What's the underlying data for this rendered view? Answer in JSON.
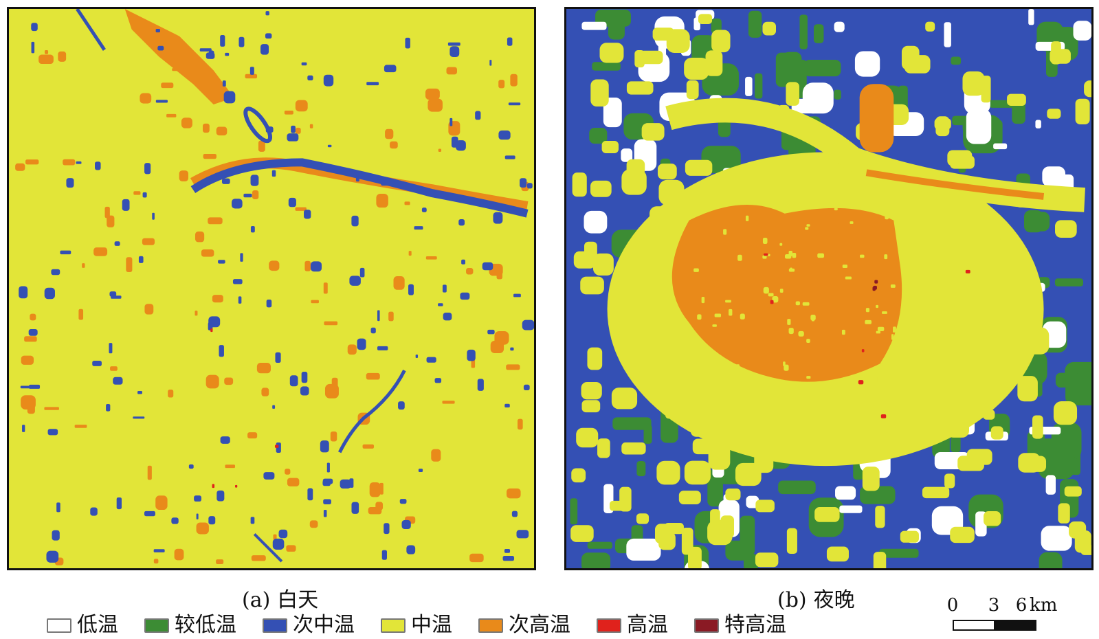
{
  "panels": {
    "a": {
      "label": "(a)",
      "title": "白天"
    },
    "b": {
      "label": "(b)",
      "title": "夜晚"
    }
  },
  "legend": [
    {
      "label": "低温",
      "color": "#ffffff"
    },
    {
      "label": "较低温",
      "color": "#3c8c34"
    },
    {
      "label": "次中温",
      "color": "#3450b4"
    },
    {
      "label": "中温",
      "color": "#e2e538"
    },
    {
      "label": "次高温",
      "color": "#e98a1a"
    },
    {
      "label": "高温",
      "color": "#e0221c"
    },
    {
      "label": "特高温",
      "color": "#8a1a24"
    }
  ],
  "scale_bar": {
    "ticks": [
      "0",
      "3",
      "6"
    ],
    "unit": "km"
  },
  "colors": {
    "yellow": "#e2e538",
    "blue": "#3450b4",
    "green": "#3c8c34",
    "orange": "#e98a1a",
    "red": "#e0221c",
    "darkred": "#8a1a24",
    "white": "#ffffff"
  }
}
